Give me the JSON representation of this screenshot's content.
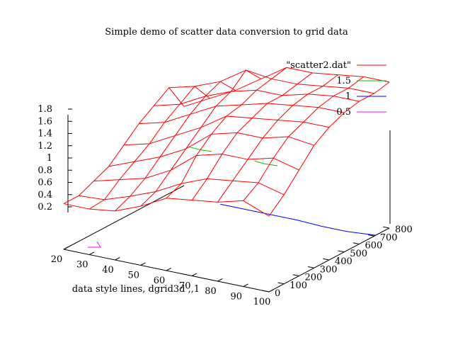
{
  "chart_data": {
    "type": "surface3d",
    "title": "Simple demo of scatter data conversion to grid data",
    "xlabel": "data style lines, dgrid3d ,,1",
    "ylabel": "",
    "zlabel": "",
    "x_ticks": [
      "20",
      "30",
      "40",
      "50",
      "60",
      "70",
      "80",
      "90",
      "100"
    ],
    "y_ticks": [
      "0",
      "100",
      "200",
      "300",
      "400",
      "500",
      "600",
      "700",
      "800"
    ],
    "z_ticks": [
      "0.2",
      "0.4",
      "0.6",
      "0.8",
      "1",
      "1.2",
      "1.4",
      "1.6",
      "1.8"
    ],
    "xlim": [
      20,
      100
    ],
    "ylim": [
      0,
      800
    ],
    "zlim": [
      0,
      1.8
    ],
    "grid": false,
    "legend_position": "top-right",
    "legend": [
      {
        "name": "\"scatter2.dat\"",
        "color": "#ff0000"
      },
      {
        "name": "1.5",
        "color": "#00c000"
      },
      {
        "name": "1",
        "color": "#0000ff"
      },
      {
        "name": "0.5",
        "color": "#ff00ff"
      }
    ],
    "surface": {
      "series": "\"scatter2.dat\"",
      "x": [
        20,
        30,
        40,
        50,
        60,
        70,
        80,
        90,
        100
      ],
      "y": [
        0,
        100,
        200,
        300,
        400,
        500,
        600,
        700,
        800
      ],
      "z": [
        [
          0.1,
          0.1,
          0.15,
          0.3,
          0.5,
          0.55,
          0.6,
          0.7,
          0.55
        ],
        [
          0.1,
          0.12,
          0.25,
          0.4,
          0.6,
          0.75,
          0.8,
          0.85,
          0.75
        ],
        [
          0.2,
          0.3,
          0.4,
          0.6,
          0.9,
          1.0,
          1.0,
          1.1,
          1.0
        ],
        [
          0.3,
          0.45,
          0.6,
          0.8,
          1.1,
          1.2,
          1.2,
          1.3,
          1.25
        ],
        [
          0.5,
          0.6,
          0.8,
          1.0,
          1.25,
          1.3,
          1.35,
          1.4,
          1.4
        ],
        [
          0.7,
          0.8,
          1.0,
          1.2,
          1.3,
          1.4,
          1.45,
          1.5,
          1.5
        ],
        [
          0.85,
          0.95,
          1.15,
          1.3,
          1.4,
          1.4,
          1.5,
          1.55,
          1.55
        ],
        [
          1.0,
          1.1,
          1.25,
          1.5,
          1.45,
          1.45,
          1.5,
          1.55,
          1.55
        ],
        [
          0.6,
          0.8,
          1.0,
          1.25,
          1.5,
          1.5,
          1.55,
          1.6,
          1.6
        ]
      ]
    }
  }
}
